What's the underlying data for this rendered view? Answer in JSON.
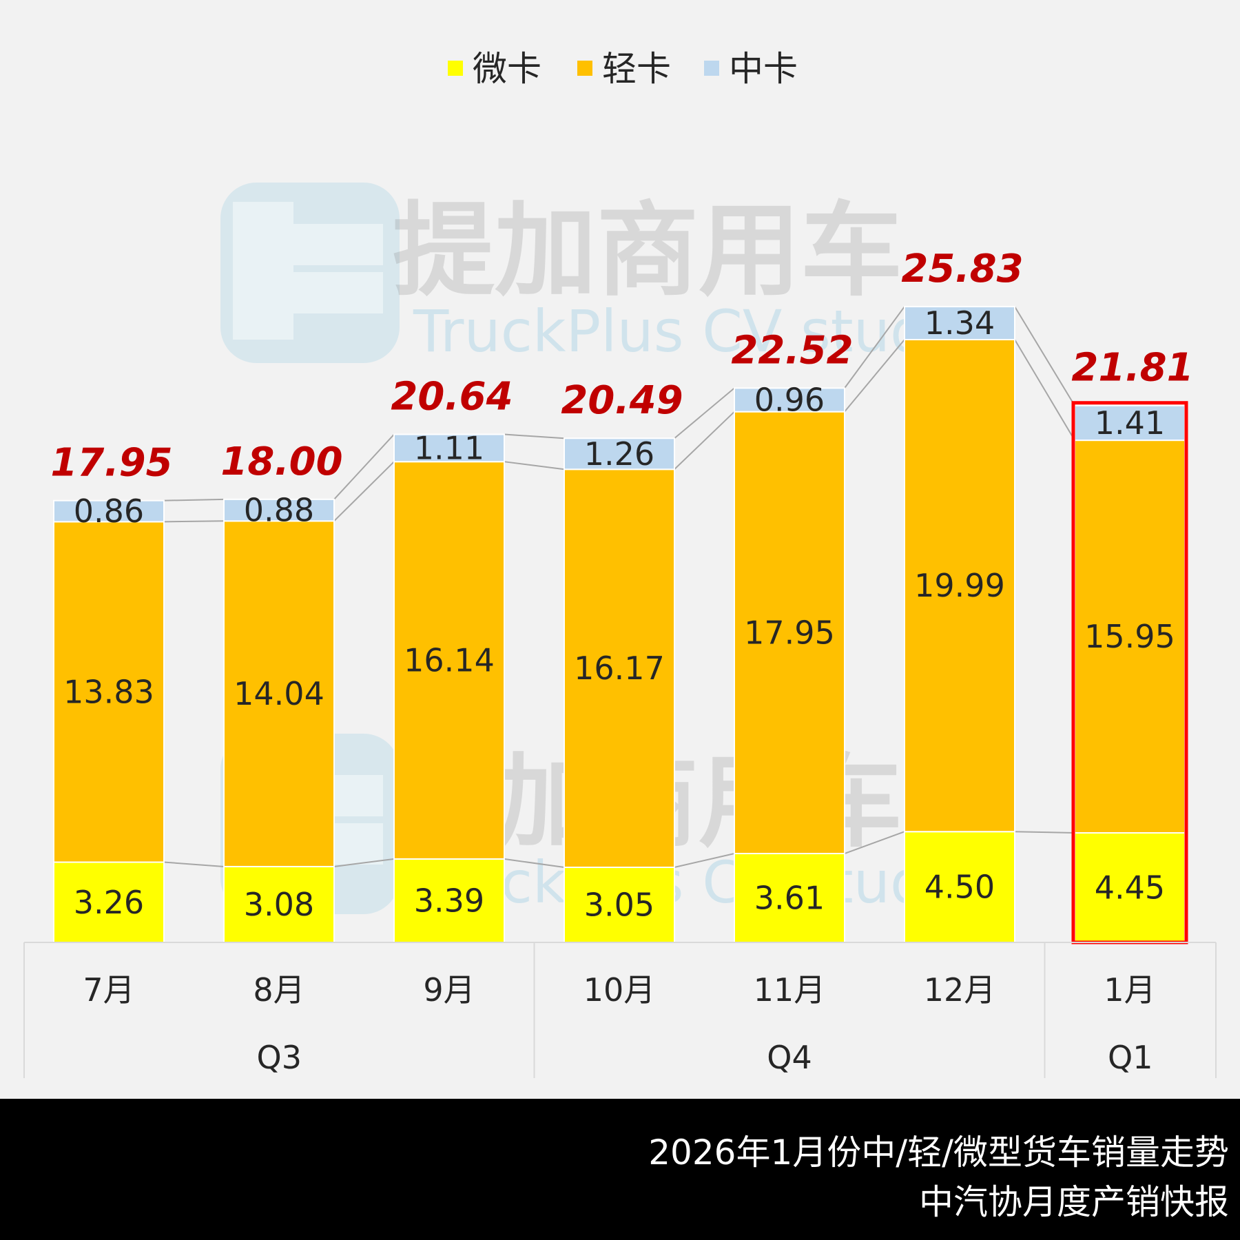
{
  "chart_data": {
    "type": "bar",
    "stacked": true,
    "title": "",
    "xlabel": "",
    "ylabel": "",
    "legend_position": "top-center",
    "grid": false,
    "categories": [
      "7月",
      "8月",
      "9月",
      "10月",
      "11月",
      "12月",
      "1月"
    ],
    "quarter_groups": [
      {
        "label": "Q3",
        "months": [
          "7月",
          "8月",
          "9月"
        ]
      },
      {
        "label": "Q4",
        "months": [
          "10月",
          "11月",
          "12月"
        ]
      },
      {
        "label": "Q1",
        "months": [
          "1月"
        ]
      }
    ],
    "series": [
      {
        "name": "微卡",
        "color": "#ffff00",
        "values": [
          3.26,
          3.08,
          3.39,
          3.05,
          3.61,
          4.5,
          4.45
        ]
      },
      {
        "name": "轻卡",
        "color": "#ffc000",
        "values": [
          13.83,
          14.04,
          16.14,
          16.17,
          17.95,
          19.99,
          15.95
        ]
      },
      {
        "name": "中卡",
        "color": "#bdd7ee",
        "values": [
          0.86,
          0.88,
          1.11,
          1.26,
          0.96,
          1.34,
          1.41
        ]
      }
    ],
    "value_labels": [
      [
        "3.26",
        "3.08",
        "3.39",
        "3.05",
        "3.61",
        "4.50",
        "4.45"
      ],
      [
        "13.83",
        "14.04",
        "16.14",
        "16.17",
        "17.95",
        "19.99",
        "15.95"
      ],
      [
        "0.86",
        "0.88",
        "1.11",
        "1.26",
        "0.96",
        "1.34",
        "1.41"
      ]
    ],
    "totals": [
      "17.95",
      "18.00",
      "20.64",
      "20.49",
      "22.52",
      "25.83",
      "21.81"
    ],
    "highlighted_category": "1月",
    "ylim": [
      0,
      27
    ],
    "colors": {
      "total_label": "#c00000",
      "highlight_border": "#ff0000",
      "series_lines": "#a6a6a6"
    }
  },
  "watermark": {
    "brand": "提加商用车",
    "subtitle": "TruckPlus CV studio"
  },
  "footer": {
    "line1": "2026年1月份中/轻/微型货车销量走势",
    "line2": "中汽协月度产销快报"
  }
}
